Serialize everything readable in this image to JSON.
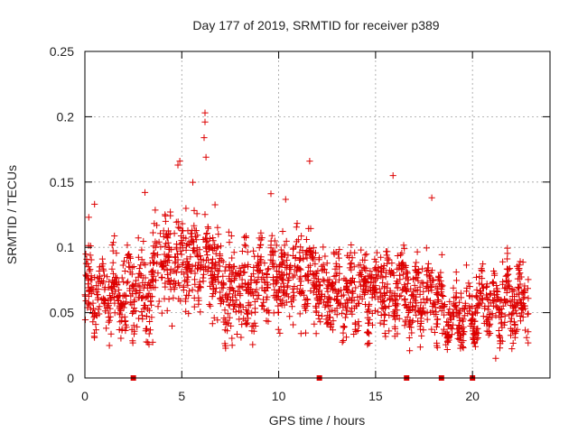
{
  "chart_data": {
    "type": "scatter",
    "title": "Day 177 of 2019, SRMTID for receiver p389",
    "xlabel": "GPS time / hours",
    "ylabel": "SRMTID / TECUs",
    "xlim": [
      0,
      24
    ],
    "ylim": [
      0,
      0.25
    ],
    "x_ticks": [
      0,
      5,
      10,
      15,
      20
    ],
    "x_tick_labels": [
      "0",
      "5",
      "10",
      "15",
      "20"
    ],
    "y_ticks": [
      0,
      0.05,
      0.1,
      0.15,
      0.2,
      0.25
    ],
    "y_tick_labels": [
      "0",
      "0.05",
      "0.1",
      "0.15",
      "0.2",
      "0.25"
    ],
    "grid": true,
    "marker": "plus",
    "series_color": "#dd0000",
    "frame_color": "#000000",
    "grid_color": "#a0a0a0",
    "zero_markers_x": [
      2.5,
      12.1,
      16.6,
      18.4,
      20.0
    ],
    "highlight_points": [
      {
        "x": 6.2,
        "y": 0.203
      },
      {
        "x": 6.2,
        "y": 0.196
      },
      {
        "x": 6.15,
        "y": 0.184
      },
      {
        "x": 6.25,
        "y": 0.169
      },
      {
        "x": 4.9,
        "y": 0.166
      },
      {
        "x": 4.8,
        "y": 0.163
      },
      {
        "x": 11.6,
        "y": 0.166
      },
      {
        "x": 15.9,
        "y": 0.155
      },
      {
        "x": 17.9,
        "y": 0.138
      },
      {
        "x": 9.6,
        "y": 0.141
      },
      {
        "x": 3.1,
        "y": 0.142
      },
      {
        "x": 0.5,
        "y": 0.133
      },
      {
        "x": 0.2,
        "y": 0.123
      },
      {
        "x": 21.2,
        "y": 0.015
      },
      {
        "x": 7.6,
        "y": 0.025
      },
      {
        "x": 19.4,
        "y": 0.025
      }
    ],
    "segments": [
      {
        "t0": 0.0,
        "t1": 2.0,
        "mean": 0.066,
        "spread": 0.018
      },
      {
        "t0": 2.0,
        "t1": 3.5,
        "mean": 0.063,
        "spread": 0.022
      },
      {
        "t0": 3.5,
        "t1": 6.8,
        "mean": 0.09,
        "spread": 0.024
      },
      {
        "t0": 6.8,
        "t1": 9.0,
        "mean": 0.07,
        "spread": 0.022
      },
      {
        "t0": 9.0,
        "t1": 12.0,
        "mean": 0.078,
        "spread": 0.022
      },
      {
        "t0": 12.0,
        "t1": 15.0,
        "mean": 0.066,
        "spread": 0.02
      },
      {
        "t0": 15.0,
        "t1": 16.5,
        "mean": 0.07,
        "spread": 0.02
      },
      {
        "t0": 16.5,
        "t1": 18.5,
        "mean": 0.063,
        "spread": 0.02
      },
      {
        "t0": 18.5,
        "t1": 20.2,
        "mean": 0.048,
        "spread": 0.014
      },
      {
        "t0": 20.2,
        "t1": 22.9,
        "mean": 0.057,
        "spread": 0.016
      }
    ]
  }
}
